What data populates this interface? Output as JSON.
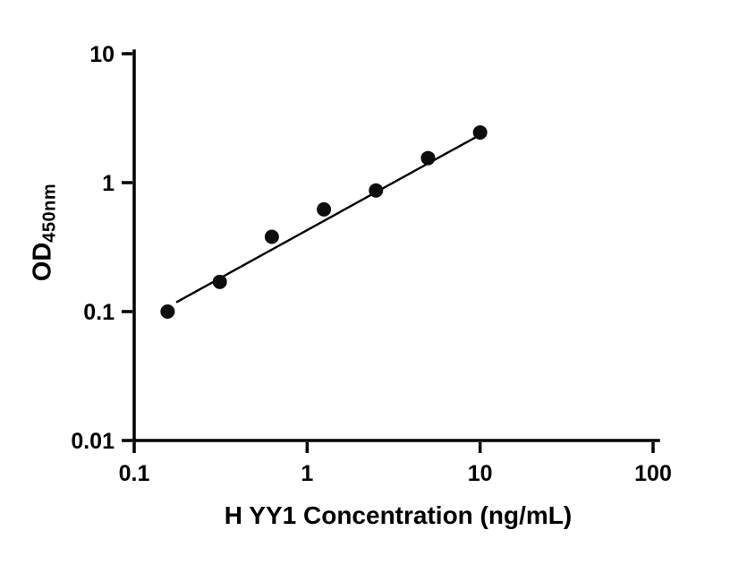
{
  "figure": {
    "background_color": "#ffffff",
    "axis_color": "#000000",
    "marker_color": "#0d0d0d"
  },
  "chart_data": {
    "type": "scatter",
    "title": "",
    "xlabel": "H YY1 Concentration (ng/mL)",
    "ylabel": "OD",
    "ylabel_subscript": "450nm",
    "x_scale": "log",
    "y_scale": "log",
    "xlim": [
      0.1,
      100
    ],
    "ylim": [
      0.01,
      10
    ],
    "x_ticks": [
      0.1,
      1,
      10,
      100
    ],
    "x_tick_labels": [
      "0.1",
      "1",
      "10",
      "100"
    ],
    "y_ticks": [
      0.01,
      0.1,
      1,
      10
    ],
    "y_tick_labels": [
      "0.01",
      "0.1",
      "1",
      "10"
    ],
    "grid": false,
    "legend": "none",
    "series": [
      {
        "name": "standard-curve-points",
        "marker": "filled-circle",
        "color": "#0d0d0d",
        "points": [
          {
            "x": 0.156,
            "y": 0.1
          },
          {
            "x": 0.3125,
            "y": 0.17
          },
          {
            "x": 0.625,
            "y": 0.38
          },
          {
            "x": 1.25,
            "y": 0.62
          },
          {
            "x": 2.5,
            "y": 0.87
          },
          {
            "x": 5,
            "y": 1.55
          },
          {
            "x": 10,
            "y": 2.45
          }
        ]
      }
    ],
    "fit_line": {
      "x1": 0.175,
      "y1": 0.118,
      "x2": 10,
      "y2": 2.35,
      "color": "#000000"
    }
  }
}
